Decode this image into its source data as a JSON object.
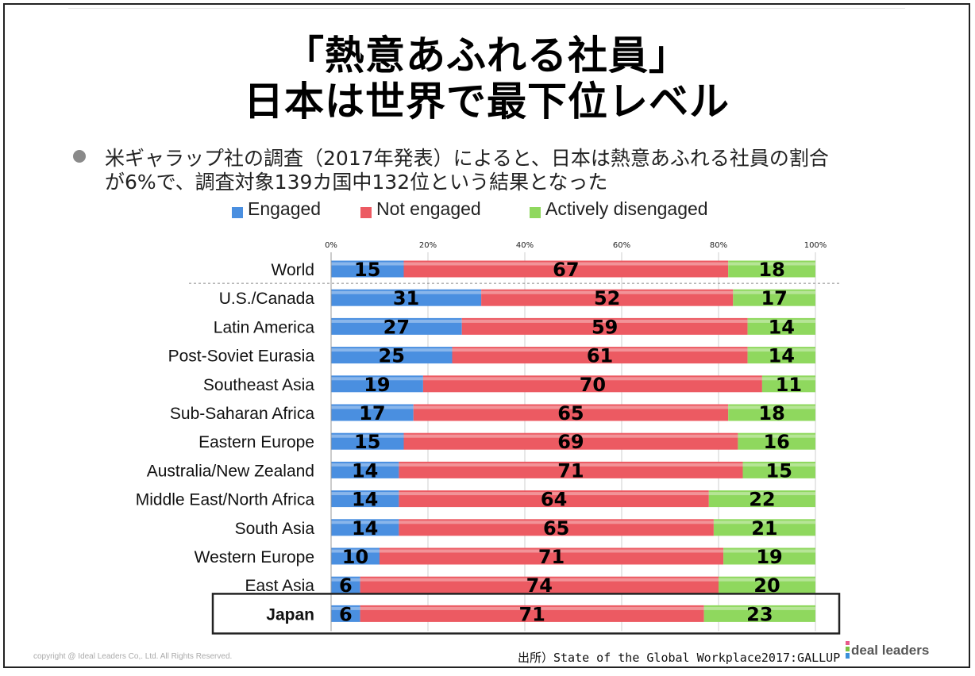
{
  "title": {
    "line1": "「熱意あふれる社員」",
    "line2": "日本は世界で最下位レベル"
  },
  "bullet": {
    "line1": "米ギャラップ社の調査（2017年発表）によると、日本は熱意あふれる社員の割合",
    "line2": "が6%で、調査対象139カ国中132位という結果となった"
  },
  "legend": [
    {
      "label": "Engaged",
      "color": "#4a8fe0"
    },
    {
      "label": "Not engaged",
      "color": "#ec5a62"
    },
    {
      "label": "Actively disengaged",
      "color": "#8fd85e"
    }
  ],
  "source": "出所）State of the Global Workplace2017:GALLUP",
  "copyright": "copyright @ Ideal Leaders Co,. Ltd. All Rights Reserved.",
  "logo": {
    "text": "deal leaders",
    "mark_colors": [
      "#e85a8c",
      "#7bc043",
      "#3a8fd9"
    ]
  },
  "colors": {
    "engaged": "#4a8fe0",
    "not_engaged": "#ec5a62",
    "actively_disengaged": "#8fd85e",
    "highlight_border": "#222222"
  },
  "chart_data": {
    "type": "bar",
    "orientation": "horizontal",
    "stacked": true,
    "xlim": [
      0,
      100
    ],
    "ticks": [
      "0%",
      "20%",
      "40%",
      "60%",
      "80%",
      "100%"
    ],
    "grid": true,
    "legend_position": "top",
    "categories": [
      "World",
      "U.S./Canada",
      "Latin America",
      "Post-Soviet Eurasia",
      "Southeast Asia",
      "Sub-Saharan Africa",
      "Eastern Europe",
      "Australia/New Zealand",
      "Middle East/North Africa",
      "South Asia",
      "Western Europe",
      "East Asia",
      "Japan"
    ],
    "highlight": "Japan",
    "separator_after": "World",
    "series": [
      {
        "name": "Engaged",
        "color": "#4a8fe0",
        "values": [
          15,
          31,
          27,
          25,
          19,
          17,
          15,
          14,
          14,
          14,
          10,
          6,
          6
        ]
      },
      {
        "name": "Not engaged",
        "color": "#ec5a62",
        "values": [
          67,
          52,
          59,
          61,
          70,
          65,
          69,
          71,
          64,
          65,
          71,
          74,
          71
        ]
      },
      {
        "name": "Actively disengaged",
        "color": "#8fd85e",
        "values": [
          18,
          17,
          14,
          14,
          11,
          18,
          16,
          15,
          22,
          21,
          19,
          20,
          23
        ]
      }
    ]
  }
}
